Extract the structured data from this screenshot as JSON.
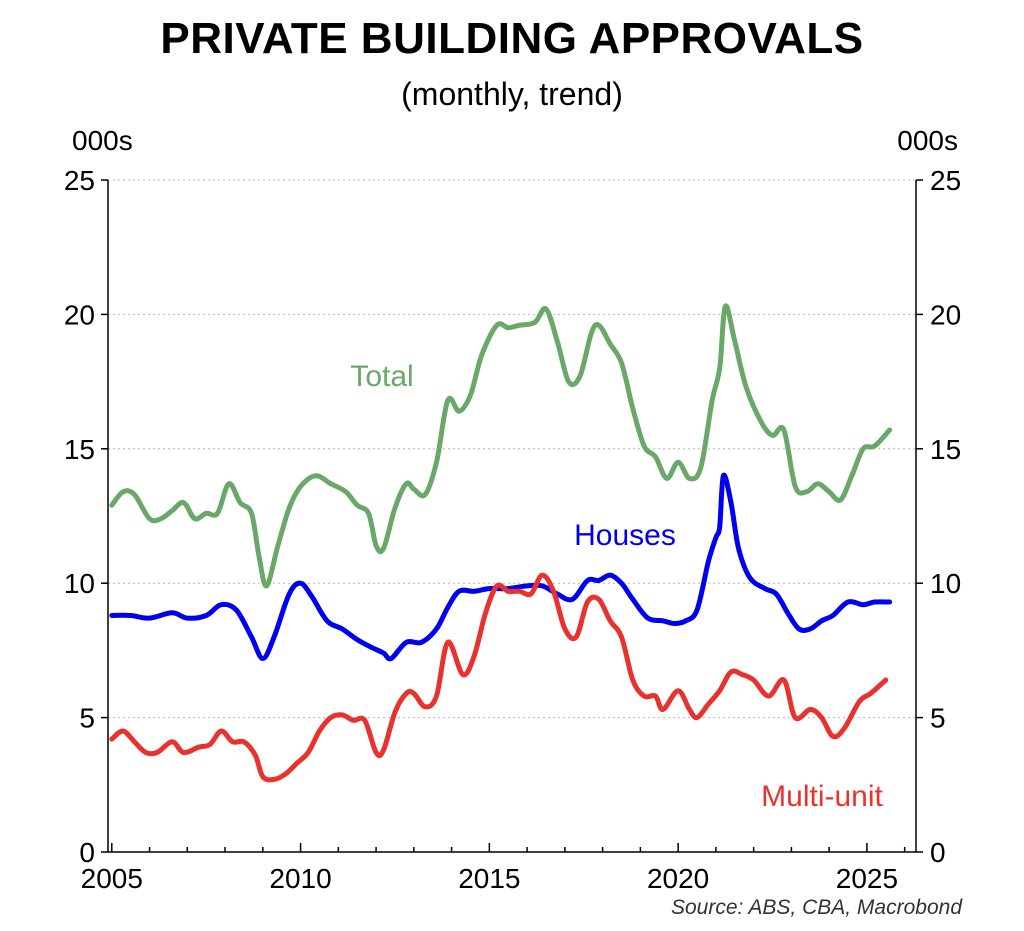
{
  "source": "Source: ABS, CBA, Macrobond",
  "chart_data": {
    "type": "line",
    "title": "PRIVATE BUILDING APPROVALS",
    "subtitle": "(monthly, trend)",
    "units_left": "000s",
    "units_right": "000s",
    "xlim": [
      2004.9,
      2026.3
    ],
    "ylim": [
      0,
      25
    ],
    "x_ticks": [
      2005,
      2010,
      2015,
      2020,
      2025
    ],
    "y_ticks": [
      0,
      5,
      10,
      15,
      20,
      25
    ],
    "grid": "horizontal dotted",
    "colors": {
      "Total": "#6aa86a",
      "Houses": "#0000ee",
      "Multi-unit": "#e8322d"
    },
    "series": [
      {
        "name": "Total",
        "points": [
          [
            2005.0,
            12.9
          ],
          [
            2005.3,
            13.4
          ],
          [
            2005.6,
            13.3
          ],
          [
            2006.0,
            12.4
          ],
          [
            2006.3,
            12.4
          ],
          [
            2006.6,
            12.7
          ],
          [
            2006.9,
            13.0
          ],
          [
            2007.2,
            12.4
          ],
          [
            2007.5,
            12.6
          ],
          [
            2007.8,
            12.6
          ],
          [
            2008.1,
            13.7
          ],
          [
            2008.4,
            13.0
          ],
          [
            2008.7,
            12.6
          ],
          [
            2008.9,
            11.0
          ],
          [
            2009.1,
            9.9
          ],
          [
            2009.4,
            11.4
          ],
          [
            2009.7,
            12.8
          ],
          [
            2010.0,
            13.6
          ],
          [
            2010.4,
            14.0
          ],
          [
            2010.8,
            13.7
          ],
          [
            2011.2,
            13.4
          ],
          [
            2011.5,
            12.9
          ],
          [
            2011.8,
            12.6
          ],
          [
            2012.0,
            11.4
          ],
          [
            2012.2,
            11.3
          ],
          [
            2012.5,
            12.8
          ],
          [
            2012.8,
            13.7
          ],
          [
            2013.0,
            13.5
          ],
          [
            2013.3,
            13.3
          ],
          [
            2013.6,
            14.5
          ],
          [
            2013.9,
            16.8
          ],
          [
            2014.2,
            16.4
          ],
          [
            2014.5,
            17.0
          ],
          [
            2014.8,
            18.5
          ],
          [
            2015.2,
            19.6
          ],
          [
            2015.5,
            19.5
          ],
          [
            2015.8,
            19.6
          ],
          [
            2016.2,
            19.7
          ],
          [
            2016.5,
            20.2
          ],
          [
            2016.8,
            19.0
          ],
          [
            2017.1,
            17.5
          ],
          [
            2017.4,
            17.7
          ],
          [
            2017.7,
            19.3
          ],
          [
            2017.9,
            19.6
          ],
          [
            2018.2,
            18.9
          ],
          [
            2018.5,
            18.2
          ],
          [
            2018.8,
            16.5
          ],
          [
            2019.1,
            15.1
          ],
          [
            2019.4,
            14.7
          ],
          [
            2019.7,
            13.9
          ],
          [
            2020.0,
            14.5
          ],
          [
            2020.3,
            13.9
          ],
          [
            2020.6,
            14.3
          ],
          [
            2020.9,
            16.8
          ],
          [
            2021.1,
            18.0
          ],
          [
            2021.25,
            20.3
          ],
          [
            2021.5,
            19.0
          ],
          [
            2021.8,
            17.3
          ],
          [
            2022.2,
            16.0
          ],
          [
            2022.5,
            15.5
          ],
          [
            2022.8,
            15.7
          ],
          [
            2023.1,
            13.6
          ],
          [
            2023.4,
            13.4
          ],
          [
            2023.7,
            13.7
          ],
          [
            2024.0,
            13.4
          ],
          [
            2024.3,
            13.1
          ],
          [
            2024.6,
            14.0
          ],
          [
            2024.9,
            15.0
          ],
          [
            2025.2,
            15.1
          ],
          [
            2025.6,
            15.7
          ]
        ]
      },
      {
        "name": "Houses",
        "points": [
          [
            2005.0,
            8.8
          ],
          [
            2005.5,
            8.8
          ],
          [
            2006.0,
            8.7
          ],
          [
            2006.6,
            8.9
          ],
          [
            2007.0,
            8.7
          ],
          [
            2007.5,
            8.8
          ],
          [
            2007.9,
            9.2
          ],
          [
            2008.3,
            9.0
          ],
          [
            2008.7,
            8.0
          ],
          [
            2009.0,
            7.2
          ],
          [
            2009.3,
            8.0
          ],
          [
            2009.7,
            9.6
          ],
          [
            2010.0,
            10.0
          ],
          [
            2010.3,
            9.5
          ],
          [
            2010.7,
            8.6
          ],
          [
            2011.1,
            8.3
          ],
          [
            2011.5,
            7.9
          ],
          [
            2011.9,
            7.6
          ],
          [
            2012.2,
            7.4
          ],
          [
            2012.4,
            7.2
          ],
          [
            2012.8,
            7.8
          ],
          [
            2013.2,
            7.8
          ],
          [
            2013.6,
            8.3
          ],
          [
            2013.9,
            9.1
          ],
          [
            2014.2,
            9.7
          ],
          [
            2014.6,
            9.7
          ],
          [
            2015.0,
            9.8
          ],
          [
            2015.5,
            9.8
          ],
          [
            2016.0,
            9.9
          ],
          [
            2016.4,
            9.9
          ],
          [
            2016.8,
            9.6
          ],
          [
            2017.2,
            9.4
          ],
          [
            2017.6,
            10.1
          ],
          [
            2017.9,
            10.1
          ],
          [
            2018.2,
            10.3
          ],
          [
            2018.5,
            10.0
          ],
          [
            2018.8,
            9.4
          ],
          [
            2019.2,
            8.7
          ],
          [
            2019.6,
            8.6
          ],
          [
            2019.9,
            8.5
          ],
          [
            2020.2,
            8.6
          ],
          [
            2020.5,
            9.0
          ],
          [
            2020.8,
            10.8
          ],
          [
            2021.0,
            11.7
          ],
          [
            2021.1,
            12.1
          ],
          [
            2021.2,
            14.0
          ],
          [
            2021.4,
            13.0
          ],
          [
            2021.6,
            11.3
          ],
          [
            2021.9,
            10.2
          ],
          [
            2022.3,
            9.8
          ],
          [
            2022.6,
            9.6
          ],
          [
            2022.9,
            8.9
          ],
          [
            2023.2,
            8.3
          ],
          [
            2023.5,
            8.3
          ],
          [
            2023.8,
            8.6
          ],
          [
            2024.1,
            8.8
          ],
          [
            2024.5,
            9.3
          ],
          [
            2024.9,
            9.2
          ],
          [
            2025.2,
            9.3
          ],
          [
            2025.6,
            9.3
          ]
        ]
      },
      {
        "name": "Multi-unit",
        "points": [
          [
            2005.0,
            4.2
          ],
          [
            2005.3,
            4.5
          ],
          [
            2005.6,
            4.1
          ],
          [
            2005.9,
            3.7
          ],
          [
            2006.2,
            3.7
          ],
          [
            2006.6,
            4.1
          ],
          [
            2006.9,
            3.7
          ],
          [
            2007.3,
            3.9
          ],
          [
            2007.6,
            4.0
          ],
          [
            2007.9,
            4.5
          ],
          [
            2008.2,
            4.1
          ],
          [
            2008.5,
            4.1
          ],
          [
            2008.8,
            3.6
          ],
          [
            2009.0,
            2.8
          ],
          [
            2009.3,
            2.7
          ],
          [
            2009.6,
            2.9
          ],
          [
            2009.9,
            3.3
          ],
          [
            2010.2,
            3.7
          ],
          [
            2010.5,
            4.5
          ],
          [
            2010.8,
            5.0
          ],
          [
            2011.1,
            5.1
          ],
          [
            2011.4,
            4.9
          ],
          [
            2011.7,
            4.9
          ],
          [
            2012.0,
            3.7
          ],
          [
            2012.2,
            3.8
          ],
          [
            2012.5,
            5.2
          ],
          [
            2012.8,
            5.9
          ],
          [
            2013.0,
            5.9
          ],
          [
            2013.3,
            5.4
          ],
          [
            2013.6,
            5.8
          ],
          [
            2013.9,
            7.8
          ],
          [
            2014.3,
            6.6
          ],
          [
            2014.6,
            7.3
          ],
          [
            2014.9,
            8.9
          ],
          [
            2015.2,
            9.9
          ],
          [
            2015.5,
            9.7
          ],
          [
            2015.8,
            9.7
          ],
          [
            2016.1,
            9.6
          ],
          [
            2016.4,
            10.3
          ],
          [
            2016.7,
            9.7
          ],
          [
            2017.0,
            8.3
          ],
          [
            2017.3,
            8.0
          ],
          [
            2017.6,
            9.3
          ],
          [
            2017.9,
            9.4
          ],
          [
            2018.2,
            8.6
          ],
          [
            2018.5,
            8.0
          ],
          [
            2018.8,
            6.4
          ],
          [
            2019.1,
            5.8
          ],
          [
            2019.4,
            5.8
          ],
          [
            2019.6,
            5.3
          ],
          [
            2020.0,
            6.0
          ],
          [
            2020.3,
            5.3
          ],
          [
            2020.5,
            5.0
          ],
          [
            2020.8,
            5.5
          ],
          [
            2021.1,
            6.0
          ],
          [
            2021.4,
            6.7
          ],
          [
            2021.7,
            6.6
          ],
          [
            2022.0,
            6.4
          ],
          [
            2022.4,
            5.8
          ],
          [
            2022.8,
            6.4
          ],
          [
            2023.1,
            5.0
          ],
          [
            2023.5,
            5.3
          ],
          [
            2023.8,
            5.0
          ],
          [
            2024.1,
            4.3
          ],
          [
            2024.4,
            4.6
          ],
          [
            2024.8,
            5.6
          ],
          [
            2025.1,
            5.9
          ],
          [
            2025.5,
            6.4
          ]
        ]
      }
    ]
  }
}
